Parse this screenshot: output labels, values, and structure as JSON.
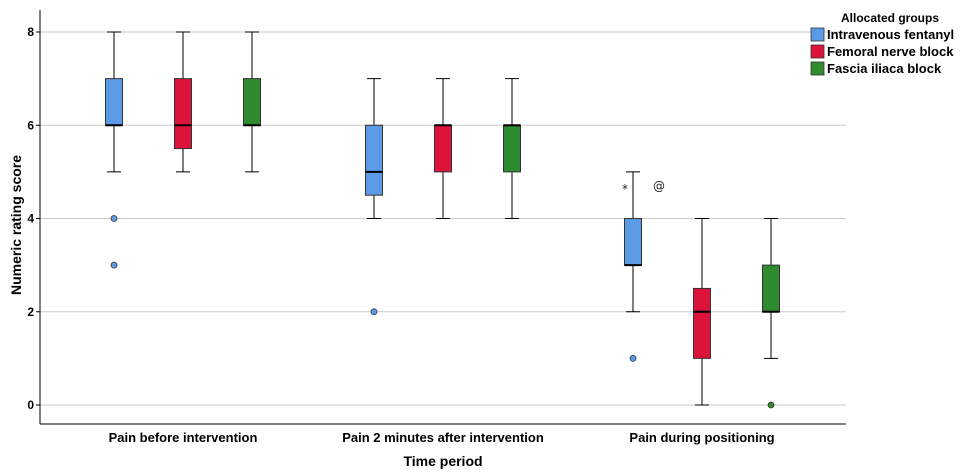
{
  "chart_data": {
    "type": "boxplot",
    "xlabel": "Time period",
    "ylabel": "Numeric rating score",
    "ylim": [
      0,
      8
    ],
    "yticks": [
      0,
      2,
      4,
      6,
      8
    ],
    "grid": true,
    "legend": {
      "title": "Allocated groups",
      "position": "top-right",
      "items": [
        {
          "name": "Intravenous fentanyl",
          "color": "#5b9be6"
        },
        {
          "name": "Femoral nerve block",
          "color": "#dc143c"
        },
        {
          "name": "Fascia iliaca block",
          "color": "#2e8b2e"
        }
      ]
    },
    "categories": [
      "Pain before intervention",
      "Pain  2 minutes after intervention",
      "Pain during positioning"
    ],
    "boxes": [
      {
        "category": 0,
        "series": 0,
        "min": 5,
        "q1": 6,
        "median": 6,
        "q3": 7,
        "max": 8,
        "outliers": [
          {
            "value": 4,
            "symbol": "o"
          },
          {
            "value": 3,
            "symbol": "o"
          }
        ]
      },
      {
        "category": 0,
        "series": 1,
        "min": 5,
        "q1": 5.5,
        "median": 6,
        "q3": 7,
        "max": 8,
        "outliers": []
      },
      {
        "category": 0,
        "series": 2,
        "min": 5,
        "q1": 6,
        "median": 6,
        "q3": 7,
        "max": 8,
        "outliers": []
      },
      {
        "category": 1,
        "series": 0,
        "min": 4,
        "q1": 4.5,
        "median": 5,
        "q3": 6,
        "max": 7,
        "outliers": [
          {
            "value": 2,
            "symbol": "o"
          }
        ]
      },
      {
        "category": 1,
        "series": 1,
        "min": 4,
        "q1": 5,
        "median": 6,
        "q3": 6,
        "max": 7,
        "outliers": []
      },
      {
        "category": 1,
        "series": 2,
        "min": 4,
        "q1": 5,
        "median": 6,
        "q3": 6,
        "max": 7,
        "outliers": []
      },
      {
        "category": 2,
        "series": 0,
        "min": 2,
        "q1": 3,
        "median": 3,
        "q3": 4,
        "max": 5,
        "outliers": [
          {
            "value": 1,
            "symbol": "o"
          },
          {
            "value": 4.7,
            "symbol": "*"
          },
          {
            "value": 4.7,
            "symbol": "@"
          }
        ]
      },
      {
        "category": 2,
        "series": 1,
        "min": 0,
        "q1": 1,
        "median": 2,
        "q3": 2.5,
        "max": 4,
        "outliers": []
      },
      {
        "category": 2,
        "series": 2,
        "min": 1,
        "q1": 2,
        "median": 2,
        "q3": 3,
        "max": 4,
        "outliers": [
          {
            "value": 0,
            "symbol": "o"
          }
        ]
      }
    ]
  }
}
